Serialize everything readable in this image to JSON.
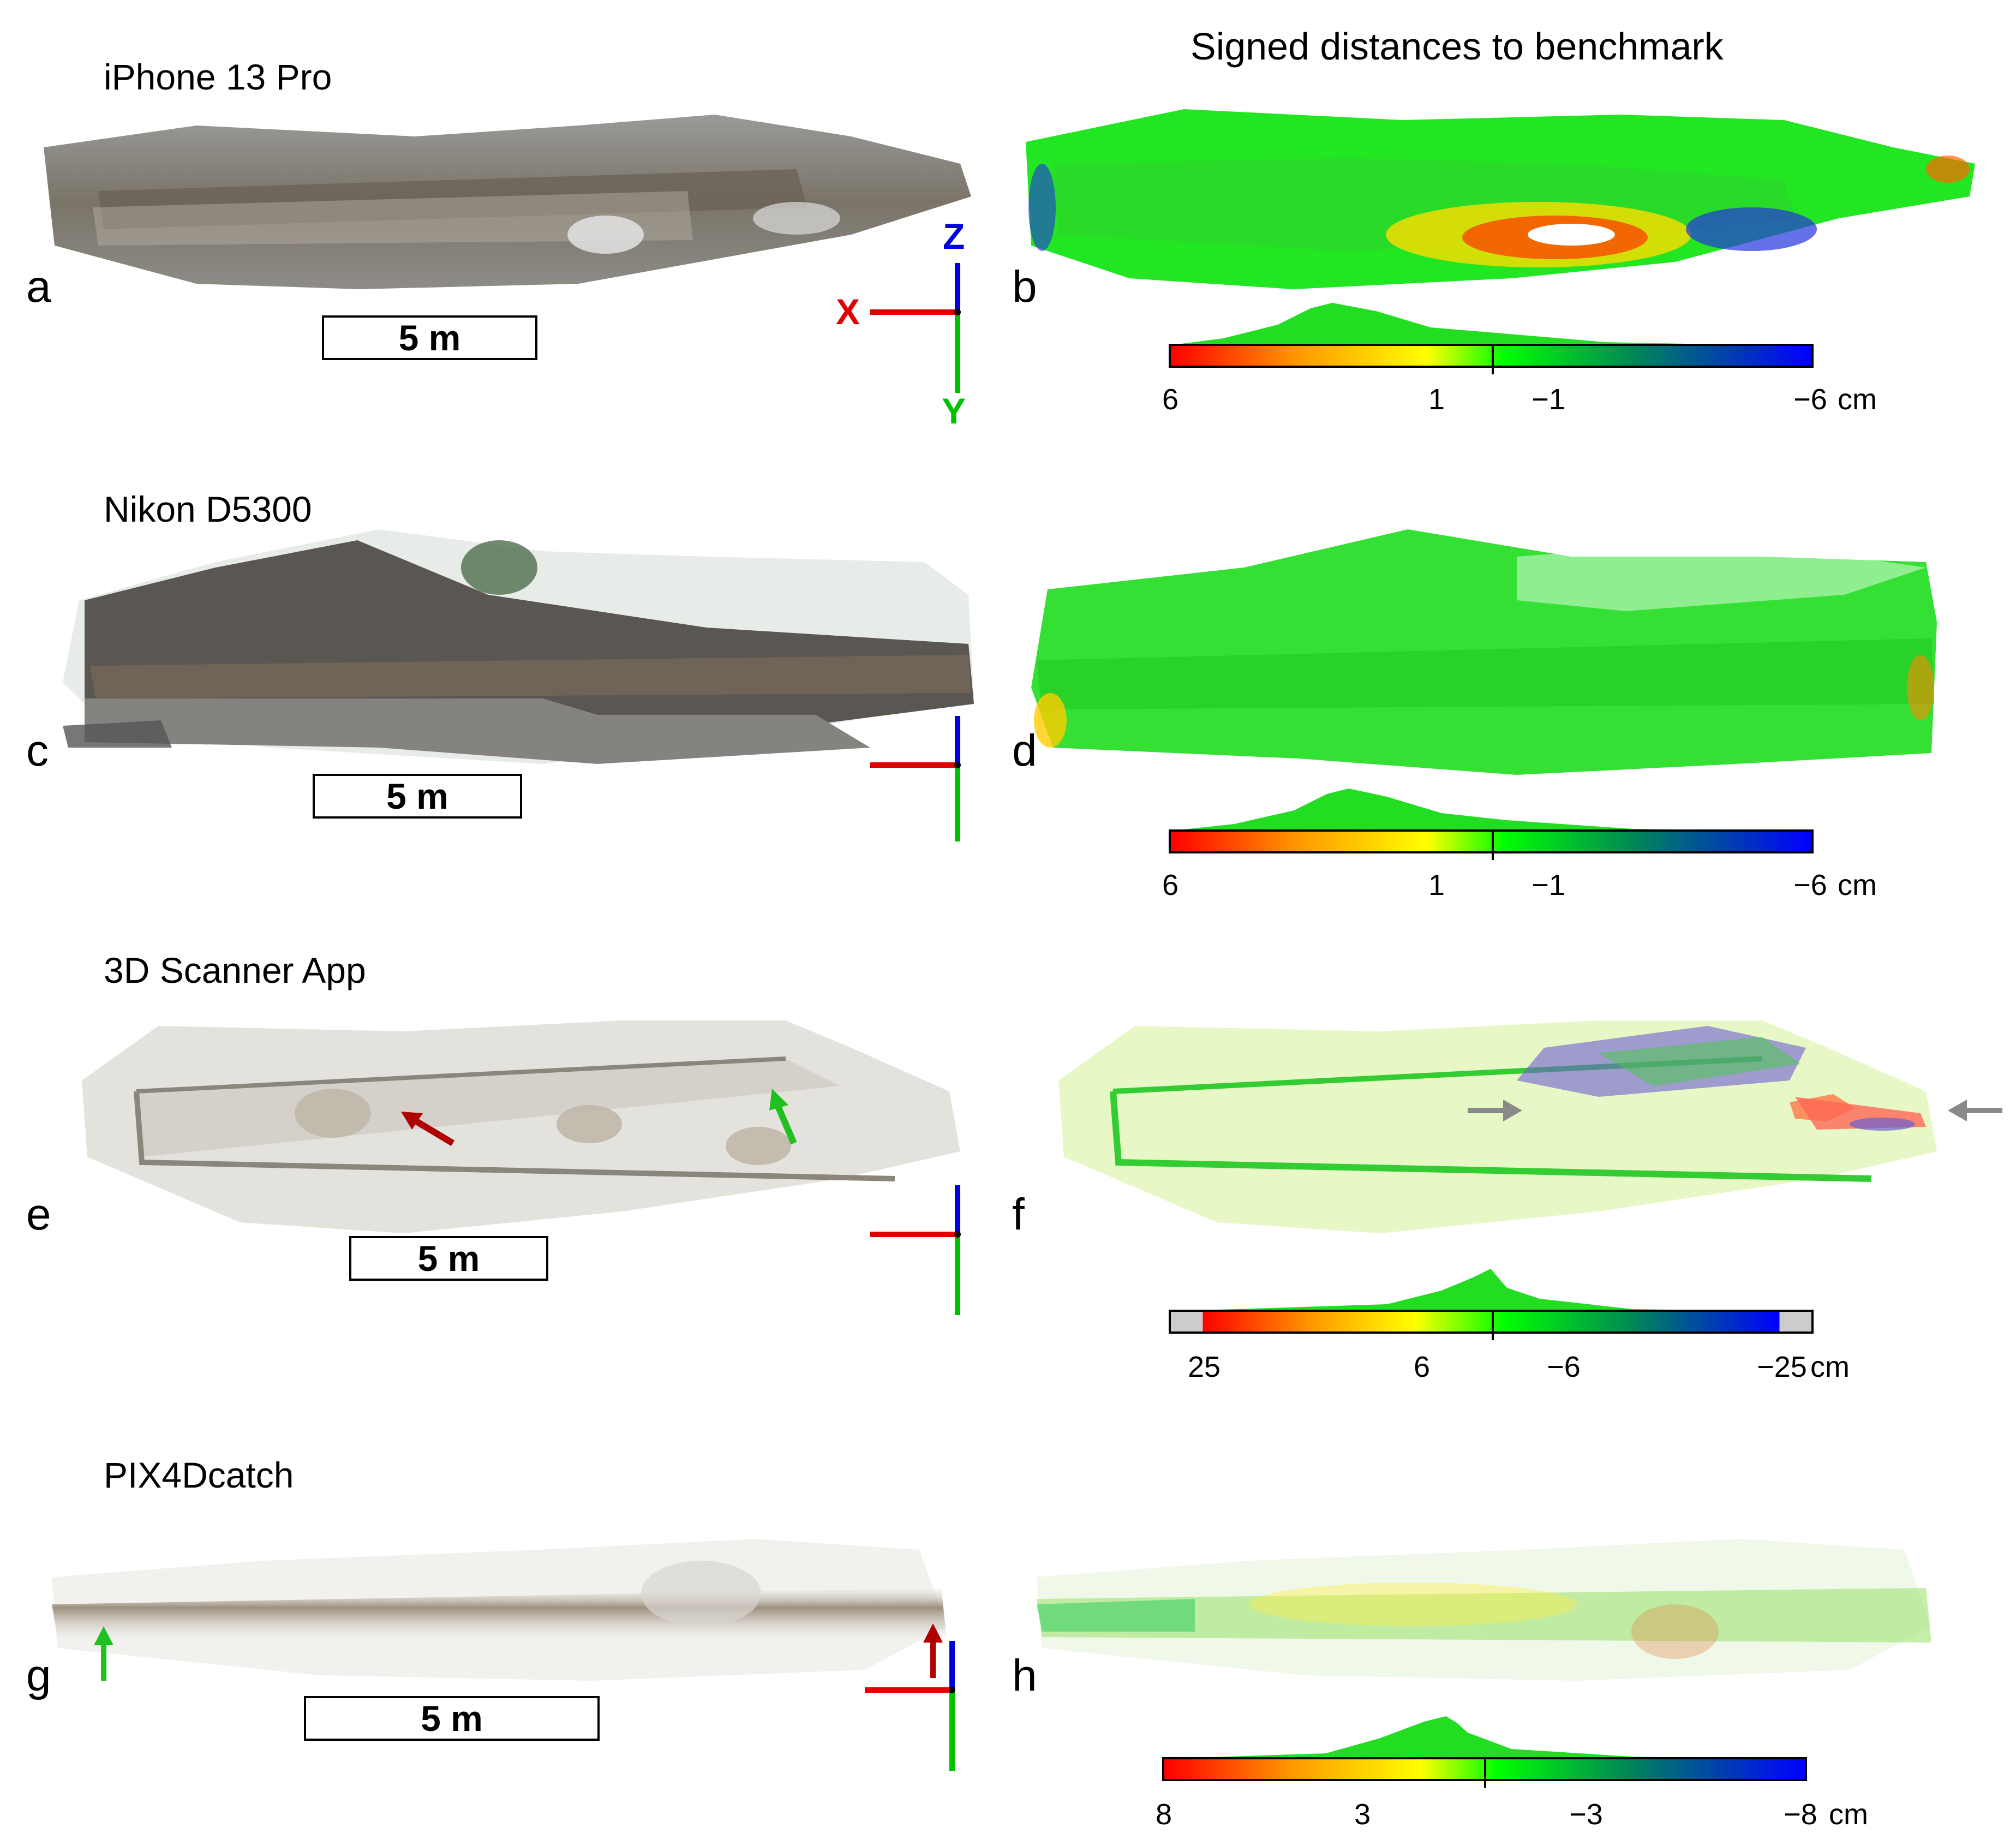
{
  "header": {
    "title": "Signed distances to benchmark"
  },
  "rows": [
    {
      "device": "iPhone 13 Pro",
      "model_letter": "a",
      "map_letter": "b",
      "scale_label": "5 m",
      "axes": {
        "x": "X",
        "y": "Y",
        "z": "Z"
      },
      "colorbar": {
        "ticks": [
          "6",
          "1",
          "−1",
          "−6"
        ],
        "unit": "cm",
        "saturated_caps": false
      },
      "model_style": "dark-photo",
      "map_style": "mostly-green-with-red-blue"
    },
    {
      "device": "Nikon D5300",
      "model_letter": "c",
      "map_letter": "d",
      "scale_label": "5 m",
      "colorbar": {
        "ticks": [
          "6",
          "1",
          "−1",
          "−6"
        ],
        "unit": "cm",
        "saturated_caps": false
      },
      "model_style": "dark-photo-with-white-speckle",
      "map_style": "green"
    },
    {
      "device": "3D Scanner App",
      "model_letter": "e",
      "map_letter": "f",
      "scale_label": "5 m",
      "colorbar": {
        "ticks": [
          "25",
          "6",
          "−6",
          "−25"
        ],
        "unit": "cm",
        "saturated_caps": true
      },
      "model_style": "light-grey-mesh",
      "map_style": "pale-green-with-purple"
    },
    {
      "device": "PIX4Dcatch",
      "model_letter": "g",
      "map_letter": "h",
      "scale_label": "5 m",
      "colorbar": {
        "ticks": [
          "8",
          "3",
          "−3",
          "−8"
        ],
        "unit": "cm",
        "saturated_caps": false
      },
      "model_style": "faint-photo",
      "map_style": "faint-green-yellow"
    }
  ],
  "colors": {
    "colormap": [
      "#ff0000",
      "#ffaa00",
      "#ffff00",
      "#00ff00",
      "#008844",
      "#0000ff"
    ],
    "axis_x": "#e00000",
    "axis_y": "#00c000",
    "axis_z": "#0000dd",
    "arrow_red": "#b00000",
    "arrow_green": "#20c020",
    "arrow_grey": "#8a8a8a",
    "histogram": "#22dd22",
    "saturated_cap": "#cccccc"
  },
  "annotations": {
    "e_arrows": [
      "red-arrow",
      "green-arrow"
    ],
    "f_arrows": [
      "grey-arrow",
      "grey-arrow"
    ],
    "g_arrows": [
      "green-arrow",
      "red-arrow"
    ]
  }
}
